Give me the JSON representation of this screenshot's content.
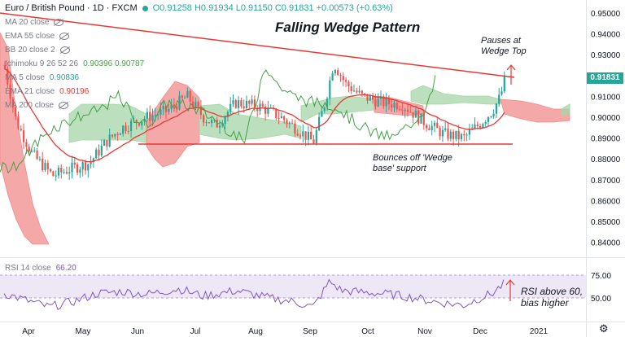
{
  "header": {
    "symbol": "Euro / British Pound · 1D · FXCM",
    "ohlc": "O0.91258 H0.91934 L0.91150 C0.91831 +0.00573 (+0.63%)"
  },
  "indicators": [
    {
      "label": "MA 20 close",
      "value": ""
    },
    {
      "label": "EMA 55 close",
      "value": ""
    },
    {
      "label": "BB 20 close 2",
      "value": ""
    },
    {
      "label": "Ichimoku 9 26 52 26",
      "value": "0.90396  0.90787"
    },
    {
      "label": "MA 5 close",
      "value": "0.90836"
    },
    {
      "label": "EMA 21 close",
      "value": "0.90196"
    },
    {
      "label": "MA 200 close",
      "value": ""
    }
  ],
  "annotations": {
    "title": "Falling Wedge Pattern",
    "pauses": "Pauses at\nWedge Top",
    "bounces": "Bounces off 'Wedge\nbase' support",
    "rsi_note": "RSI above 60,\nbias higher"
  },
  "price_axis": [
    "0.95000",
    "0.94000",
    "0.93000",
    "0.92000",
    "0.91000",
    "0.90000",
    "0.89000",
    "0.88000",
    "0.87000",
    "0.86000",
    "0.85000",
    "0.84000"
  ],
  "last_price": "0.91831",
  "rsi": {
    "label": "RSI 14 close",
    "value": "66.20",
    "axis": [
      "75.00",
      "50.00"
    ]
  },
  "time_axis": [
    "Apr",
    "May",
    "Jun",
    "Jul",
    "Aug",
    "Sep",
    "Oct",
    "Nov",
    "Dec",
    "2021"
  ],
  "colors": {
    "up": "#26a69a",
    "down": "#ef5350",
    "ema": "#e53935",
    "cloud_green": "#a5d6a7",
    "cloud_red": "#f28b8b",
    "rsi_line": "#7e57c2",
    "rsi_band": "#ede7f6"
  }
}
